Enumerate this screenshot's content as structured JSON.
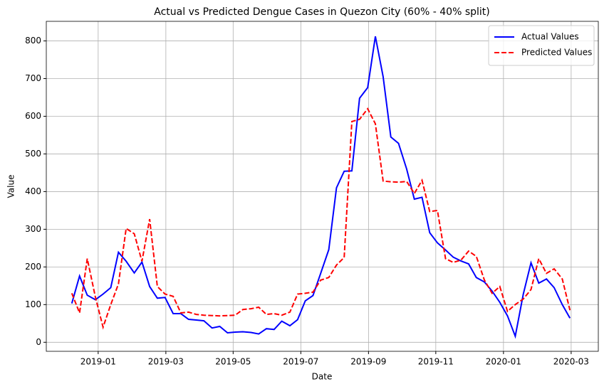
{
  "chart_data": {
    "type": "line",
    "title": "Actual vs Predicted Dengue Cases in Quezon City (60% - 40% split)",
    "xlabel": "Date",
    "ylabel": "Value",
    "x": [
      2018.935,
      2018.954,
      2018.973,
      2018.993,
      2019.012,
      2019.031,
      2019.05,
      2019.069,
      2019.089,
      2019.108,
      2019.127,
      2019.146,
      2019.165,
      2019.185,
      2019.204,
      2019.223,
      2019.242,
      2019.261,
      2019.281,
      2019.3,
      2019.319,
      2019.338,
      2019.357,
      2019.377,
      2019.396,
      2019.415,
      2019.434,
      2019.453,
      2019.473,
      2019.492,
      2019.511,
      2019.53,
      2019.549,
      2019.569,
      2019.588,
      2019.607,
      2019.626,
      2019.645,
      2019.665,
      2019.684,
      2019.703,
      2019.722,
      2019.741,
      2019.761,
      2019.78,
      2019.799,
      2019.818,
      2019.837,
      2019.857,
      2019.876,
      2019.895,
      2019.914,
      2019.933,
      2019.953,
      2019.972,
      2019.991,
      2020.01,
      2020.029,
      2020.049,
      2020.068,
      2020.087,
      2020.106,
      2020.125,
      2020.145,
      2020.164
    ],
    "series": [
      {
        "name": "Actual Values",
        "color": "#0000ff",
        "dash": false,
        "values": [
          103,
          176,
          125,
          113,
          128,
          145,
          239,
          215,
          184,
          213,
          148,
          117,
          119,
          76,
          76,
          61,
          59,
          57,
          38,
          42,
          25,
          27,
          28,
          26,
          22,
          36,
          34,
          56,
          44,
          60,
          110,
          124,
          183,
          246,
          410,
          454,
          455,
          648,
          676,
          812,
          705,
          545,
          528,
          460,
          380,
          385,
          291,
          264,
          245,
          226,
          216,
          208,
          172,
          160,
          136,
          106,
          70,
          16,
          128,
          211,
          157,
          168,
          145,
          100,
          64
        ]
      },
      {
        "name": "Predicted Values",
        "color": "#ff0000",
        "dash": true,
        "values": [
          130,
          78,
          222,
          120,
          40,
          100,
          155,
          302,
          288,
          215,
          327,
          148,
          128,
          122,
          78,
          80,
          74,
          72,
          71,
          70,
          71,
          72,
          87,
          89,
          93,
          74,
          76,
          72,
          80,
          128,
          130,
          133,
          165,
          172,
          205,
          225,
          586,
          592,
          620,
          580,
          428,
          426,
          425,
          427,
          395,
          430,
          347,
          350,
          222,
          212,
          218,
          242,
          228,
          165,
          130,
          148,
          82,
          100,
          115,
          140,
          222,
          183,
          195,
          168,
          85
        ]
      }
    ],
    "xlim": [
      2018.872,
      2020.234
    ],
    "xticks": [
      {
        "value": 2019.0,
        "label": "2019-01"
      },
      {
        "value": 2019.167,
        "label": "2019-03"
      },
      {
        "value": 2019.333,
        "label": "2019-05"
      },
      {
        "value": 2019.5,
        "label": "2019-07"
      },
      {
        "value": 2019.667,
        "label": "2019-09"
      },
      {
        "value": 2019.833,
        "label": "2019-11"
      },
      {
        "value": 2020.0,
        "label": "2020-01"
      },
      {
        "value": 2020.167,
        "label": "2020-03"
      }
    ],
    "ylim": [
      -24,
      852
    ],
    "yticks": [
      0,
      100,
      200,
      300,
      400,
      500,
      600,
      700,
      800
    ],
    "grid": true,
    "legend": "upper right"
  }
}
